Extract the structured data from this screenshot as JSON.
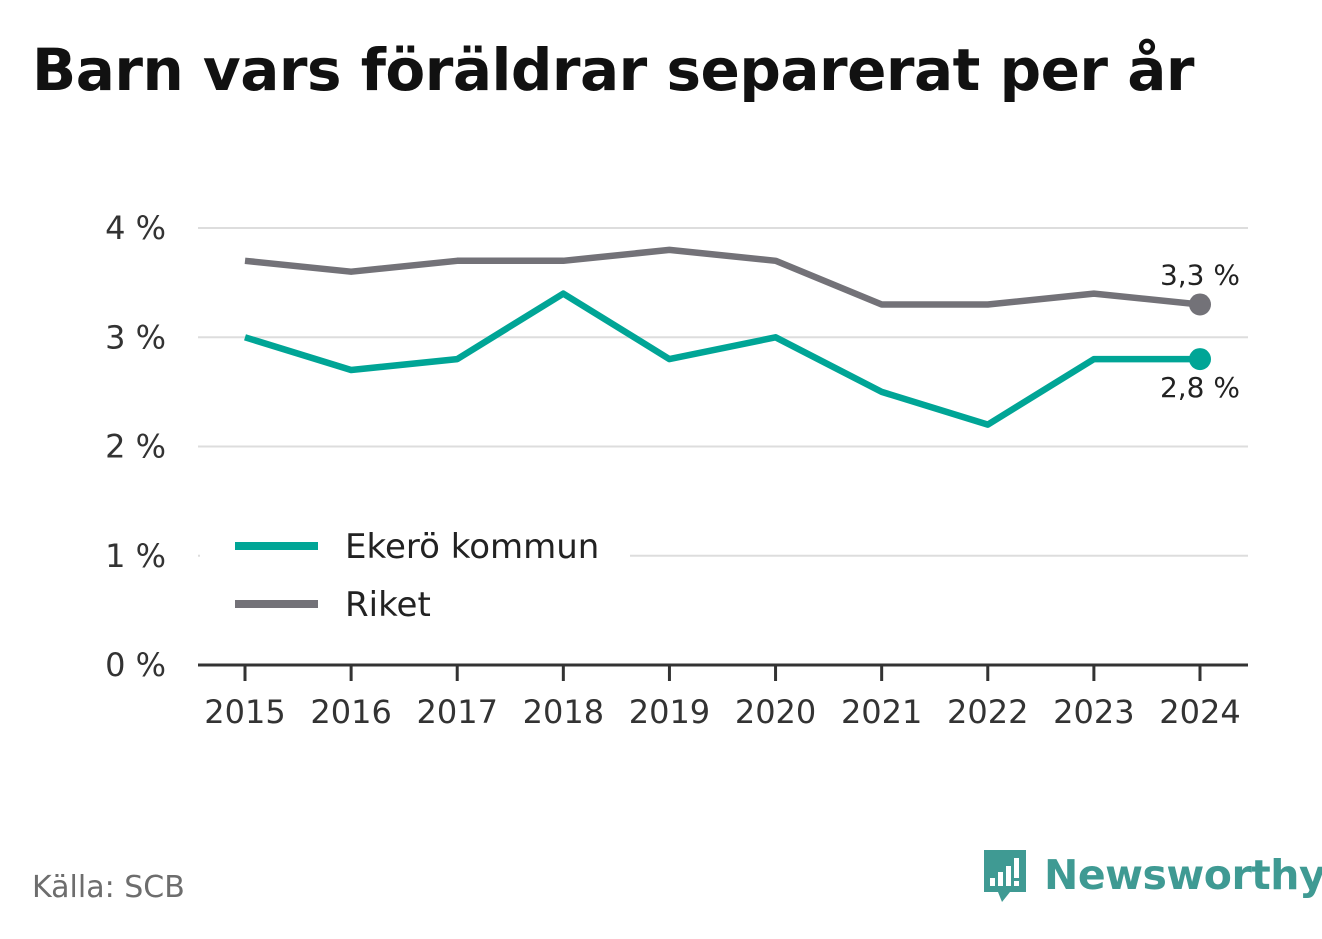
{
  "title": "Barn vars föräldrar separerat per år",
  "source": "Källa: SCB",
  "brand": {
    "name": "Newsworthy",
    "icon": "bar-chart-speech-bubble-icon",
    "color": "#3f9a93"
  },
  "chart_data": {
    "type": "line",
    "x": [
      2015,
      2016,
      2017,
      2018,
      2019,
      2020,
      2021,
      2022,
      2023,
      2024
    ],
    "x_tick_labels": [
      "2015",
      "2016",
      "2017",
      "2018",
      "2019",
      "2020",
      "2021",
      "2022",
      "2023",
      "2024"
    ],
    "y_ticks": [
      0,
      1,
      2,
      3,
      4
    ],
    "y_tick_labels": [
      "0 %",
      "1 %",
      "2 %",
      "3 %",
      "4 %"
    ],
    "ylim": [
      0,
      4
    ],
    "grid": true,
    "legend_position": "lower-left",
    "series": [
      {
        "name": "Ekerö kommun",
        "color": "#00a596",
        "values": [
          3.0,
          2.7,
          2.8,
          3.4,
          2.8,
          3.0,
          2.5,
          2.2,
          2.8,
          2.8
        ],
        "end_label": "2,8 %"
      },
      {
        "name": "Riket",
        "color": "#737278",
        "values": [
          3.7,
          3.6,
          3.7,
          3.7,
          3.8,
          3.7,
          3.3,
          3.3,
          3.4,
          3.3
        ],
        "end_label": "3,3 %"
      }
    ]
  }
}
